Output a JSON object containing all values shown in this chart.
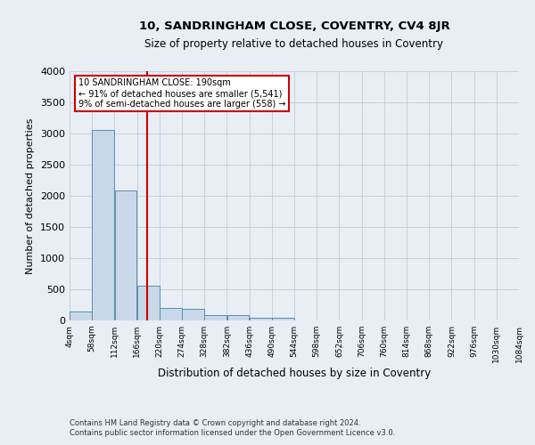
{
  "title": "10, SANDRINGHAM CLOSE, COVENTRY, CV4 8JR",
  "subtitle": "Size of property relative to detached houses in Coventry",
  "xlabel": "Distribution of detached houses by size in Coventry",
  "ylabel": "Number of detached properties",
  "footer_line1": "Contains HM Land Registry data © Crown copyright and database right 2024.",
  "footer_line2": "Contains public sector information licensed under the Open Government Licence v3.0.",
  "bar_color": "#c8d8e8",
  "bar_edge_color": "#5b8db0",
  "grid_color": "#c0ccd8",
  "background_color": "#e8eef4",
  "annotation_box_color": "#ffffff",
  "annotation_border_color": "#cc0000",
  "vline_color": "#cc0000",
  "property_size": 190,
  "annotation_line1": "10 SANDRINGHAM CLOSE: 190sqm",
  "annotation_line2": "← 91% of detached houses are smaller (5,541)",
  "annotation_line3": "9% of semi-detached houses are larger (558) →",
  "bin_edges": [
    4,
    58,
    112,
    166,
    220,
    274,
    328,
    382,
    436,
    490,
    544,
    598,
    652,
    706,
    760,
    814,
    868,
    922,
    976,
    1030,
    1084
  ],
  "bar_heights": [
    150,
    3050,
    2080,
    558,
    200,
    190,
    90,
    85,
    50,
    45,
    0,
    0,
    0,
    0,
    0,
    0,
    0,
    0,
    0,
    0
  ],
  "ylim": [
    0,
    4000
  ],
  "yticks": [
    0,
    500,
    1000,
    1500,
    2000,
    2500,
    3000,
    3500,
    4000
  ]
}
